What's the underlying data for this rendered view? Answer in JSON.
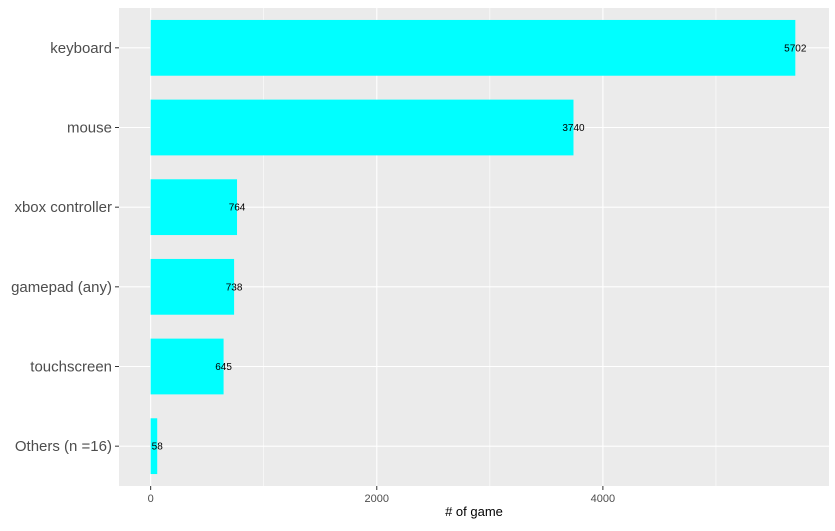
{
  "chart_data": {
    "type": "bar",
    "orientation": "horizontal",
    "categories": [
      "keyboard",
      "mouse",
      "xbox controller",
      "gamepad (any)",
      "touchscreen",
      "Others (n =16)"
    ],
    "values": [
      5702,
      3740,
      764,
      738,
      645,
      58
    ],
    "value_labels": [
      "5702",
      "3740",
      "764",
      "738",
      "645",
      "58"
    ],
    "xlabel": "# of game",
    "ylabel": "",
    "title": "",
    "xlim": [
      -280,
      6000
    ],
    "x_ticks": [
      0,
      2000,
      4000
    ],
    "x_tick_labels": [
      "0",
      "2000",
      "4000"
    ],
    "grid": true,
    "legend": "none",
    "colors": {
      "bar": "#00FFFF",
      "panel": "#EBEBEB",
      "grid": "#FFFFFF",
      "text": "#4D4D4D"
    }
  }
}
